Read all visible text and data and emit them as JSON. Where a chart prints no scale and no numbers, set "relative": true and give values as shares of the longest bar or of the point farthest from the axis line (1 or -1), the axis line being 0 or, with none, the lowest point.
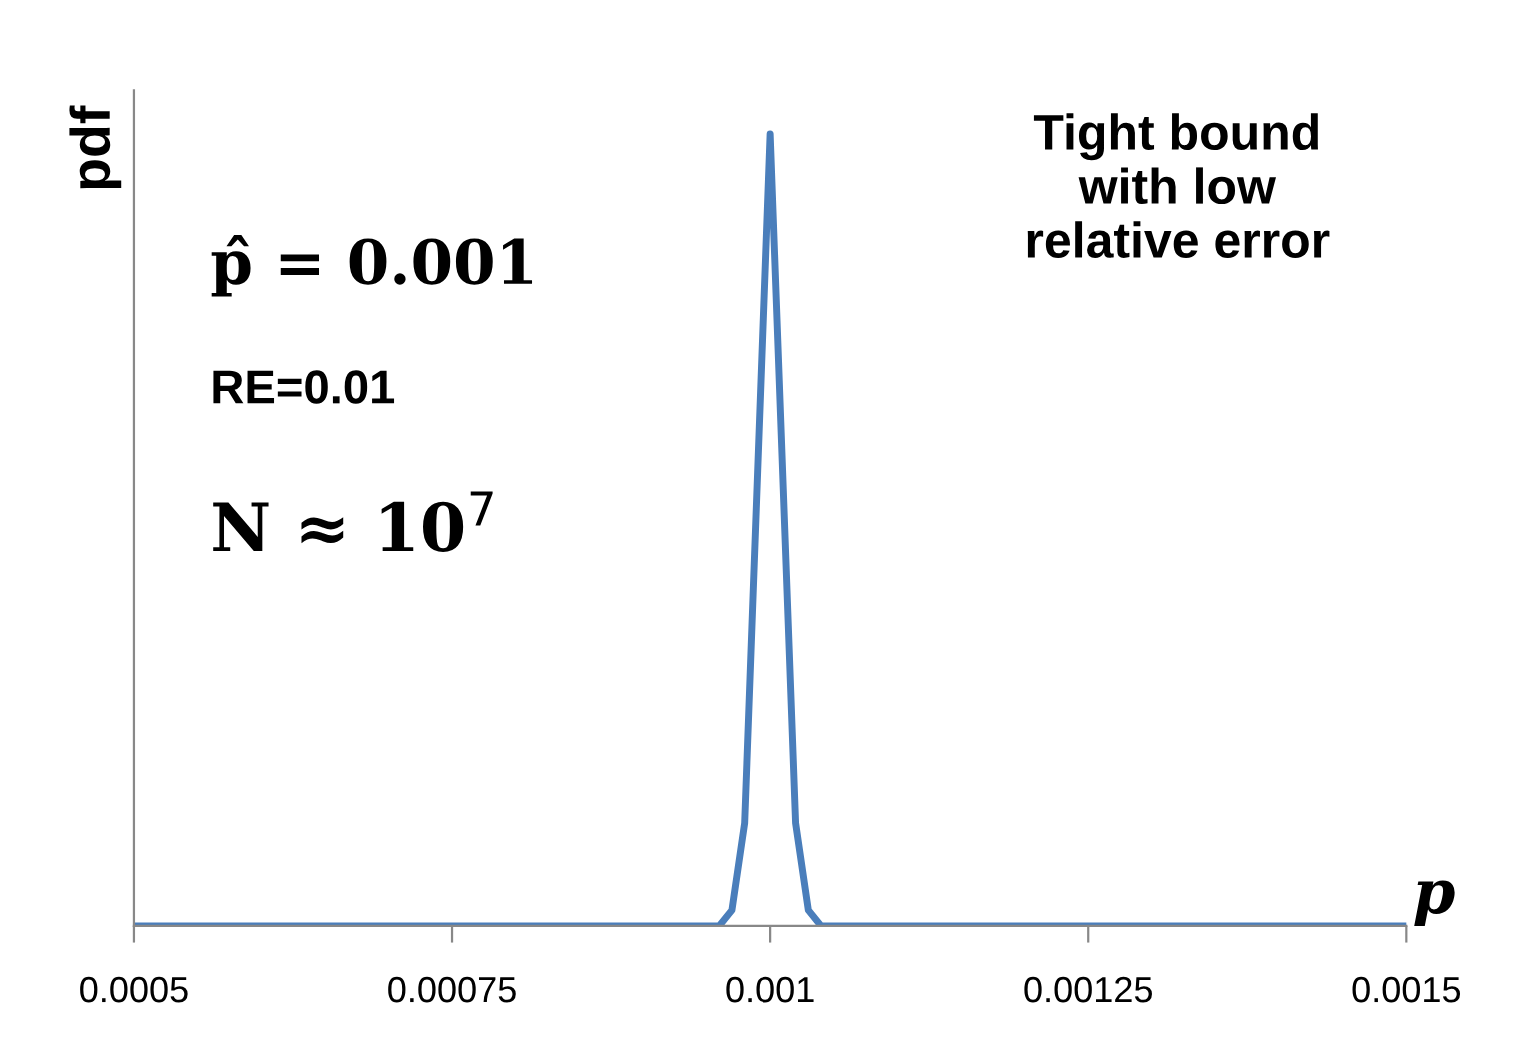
{
  "chart_data": {
    "type": "line",
    "relative": true,
    "xlabel": "p",
    "ylabel": "pdf",
    "x": [
      0.0005,
      0.00096,
      0.00097,
      0.00098,
      0.001,
      0.00102,
      0.00103,
      0.00104,
      0.0015
    ],
    "series": [
      {
        "color": "#4a7ebb",
        "values": [
          0,
          0,
          0.02,
          0.13,
          1,
          0.13,
          0.02,
          0,
          0
        ]
      }
    ],
    "xlim": [
      0.0005,
      0.0015
    ],
    "xticks": [
      0.0005,
      0.00075,
      0.001,
      0.00125,
      0.0015
    ],
    "marker": "none",
    "line_style": "solid",
    "grid": false,
    "legend": false,
    "annotations": [
      "p̂ = 0.001",
      "RE=0.01",
      "N ≈ 10$^{7}$",
      "Tight bound\nwith low\nrelative error"
    ]
  }
}
